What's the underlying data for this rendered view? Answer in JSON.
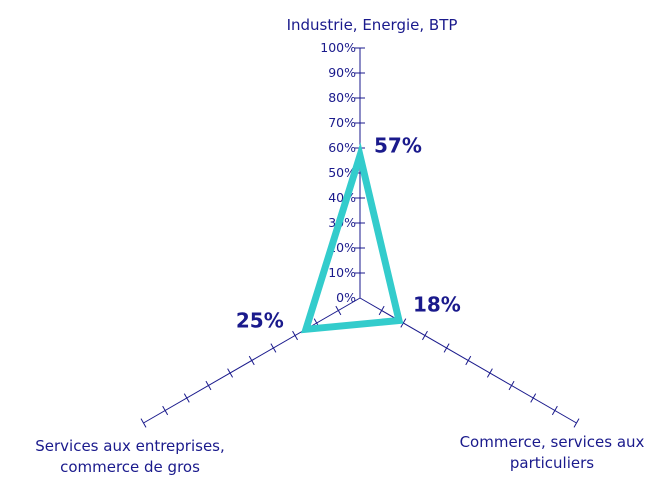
{
  "chart_data": {
    "type": "radar",
    "categories": [
      [
        "Industrie, Energie, BTP"
      ],
      [
        "Commerce, services aux",
        "particuliers"
      ],
      [
        "Services aux entreprises,",
        "commerce de gros"
      ]
    ],
    "series": [
      {
        "values": [
          57,
          18,
          25
        ]
      }
    ],
    "value_labels": [
      "57%",
      "18%",
      "25%"
    ],
    "ylim": [
      0,
      100
    ],
    "yticks": [
      "0%",
      "10%",
      "20%",
      "30%",
      "40%",
      "50%",
      "60%",
      "70%",
      "80%",
      "90%",
      "100%"
    ],
    "grid": false,
    "legend": "none",
    "colors": {
      "axis": "#1a1a8c",
      "series": "#33cccc",
      "text": "#1a1a8c"
    }
  }
}
